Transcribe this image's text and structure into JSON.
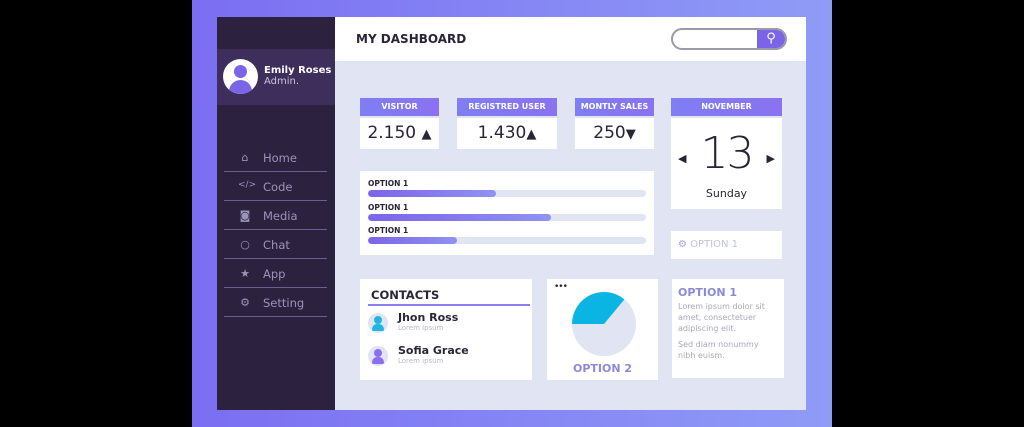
{
  "user": {
    "name": "Emily Roses",
    "role": "Admin."
  },
  "nav": [
    {
      "icon": "home-icon",
      "label": "Home"
    },
    {
      "icon": "code-icon",
      "label": "Code"
    },
    {
      "icon": "camera-icon",
      "label": "Media"
    },
    {
      "icon": "chat-icon",
      "label": "Chat"
    },
    {
      "icon": "star-icon",
      "label": "App"
    },
    {
      "icon": "gear-icon",
      "label": "Setting"
    }
  ],
  "header": {
    "title": "MY DASHBOARD",
    "search_value": ""
  },
  "kpis": [
    {
      "label": "VISITOR",
      "value": "2.150",
      "trend": "up"
    },
    {
      "label": "REGISTRED USER",
      "value": "1.430",
      "trend": "up"
    },
    {
      "label": "MONTLY SALES",
      "value": "250",
      "trend": "down"
    }
  ],
  "calendar": {
    "month": "NOVEMBER",
    "day": "13",
    "weekday": "Sunday"
  },
  "progress": [
    {
      "label": "OPTION 1",
      "value": 0.46
    },
    {
      "label": "OPTION 1",
      "value": 0.66
    },
    {
      "label": "OPTION 1",
      "value": 0.32
    }
  ],
  "option_button": {
    "label": "OPTION 1"
  },
  "contacts": {
    "title": "CONTACTS",
    "items": [
      {
        "name": "Jhon Ross",
        "sub": "Lorem ipsum",
        "color": "#1fb6e0"
      },
      {
        "name": "Sofia Grace",
        "sub": "Lorem ipsum",
        "color": "#8b6ef0"
      }
    ]
  },
  "pie": {
    "label": "OPTION 2",
    "fraction": 0.36,
    "colors": [
      "#0bb5e3",
      "#e0e4f3"
    ],
    "menu": "•••"
  },
  "info": {
    "title": "OPTION 1",
    "p1": "Lorem ipsum dolor sit amet, consectetuer adipiscing elit.",
    "p2": "Sed diam nonummy nibh euism."
  },
  "colors": {
    "accent": "#7b64e8",
    "sidebar": "#2d2140",
    "content_bg": "#e0e4f3"
  }
}
